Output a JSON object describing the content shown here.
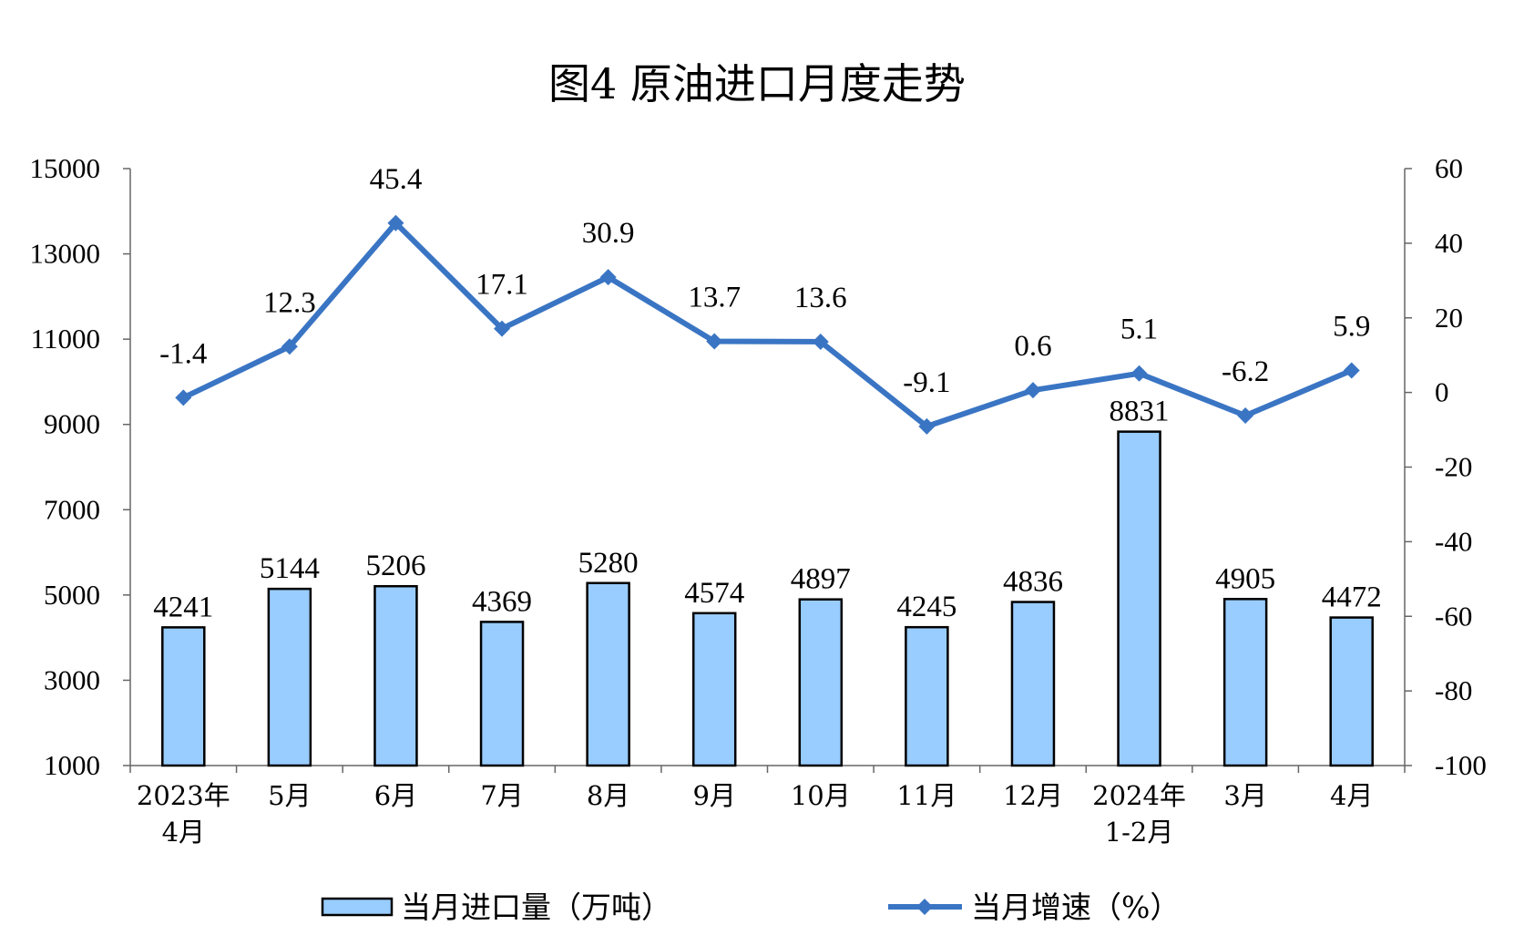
{
  "chart_data": {
    "type": "bar",
    "title": "图4 原油进口月度走势",
    "categories": [
      [
        "2023年",
        "4月"
      ],
      [
        "5月"
      ],
      [
        "6月"
      ],
      [
        "7月"
      ],
      [
        "8月"
      ],
      [
        "9月"
      ],
      [
        "10月"
      ],
      [
        "11月"
      ],
      [
        "12月"
      ],
      [
        "2024年",
        "1-2月"
      ],
      [
        "3月"
      ],
      [
        "4月"
      ]
    ],
    "series": [
      {
        "name": "当月进口量（万吨）",
        "type": "bar",
        "axis": "left",
        "color": "#99CCFF",
        "values": [
          4241,
          5144,
          5206,
          4369,
          5280,
          4574,
          4897,
          4245,
          4836,
          8831,
          4905,
          4472
        ]
      },
      {
        "name": "当月增速（%）",
        "type": "line",
        "axis": "right",
        "color": "#3A75C4",
        "marker": "diamond",
        "values": [
          -1.4,
          12.3,
          45.4,
          17.1,
          30.9,
          13.7,
          13.6,
          -9.1,
          0.6,
          5.1,
          -6.2,
          5.9
        ]
      }
    ],
    "y_left": {
      "min": 1000,
      "max": 15000,
      "ticks": [
        1000,
        3000,
        5000,
        7000,
        9000,
        11000,
        13000,
        15000
      ]
    },
    "y_right": {
      "min": -100,
      "max": 60,
      "ticks": [
        -100,
        -80,
        -60,
        -40,
        -20,
        0,
        20,
        40,
        60
      ]
    },
    "grid": false,
    "legend_position": "bottom"
  }
}
